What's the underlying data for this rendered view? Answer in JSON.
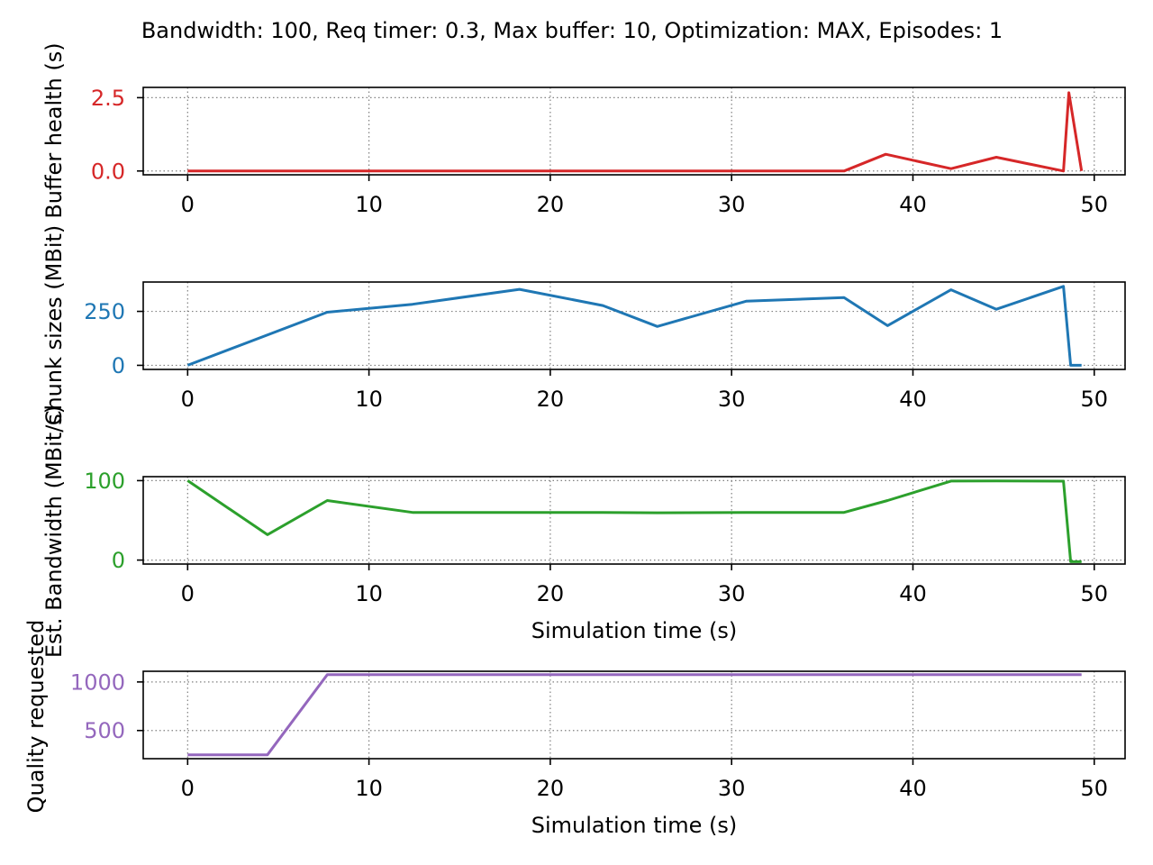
{
  "title": "Bandwidth: 100, Req timer: 0.3, Max buffer: 10, Optimization: MAX, Episodes: 1",
  "chart_data": [
    {
      "type": "line",
      "id": "buffer",
      "ylabel": "Buffer health (s)",
      "xlabel": "",
      "color": "#d62728",
      "xlim": [
        -2.45,
        51.7
      ],
      "ylim": [
        -0.13,
        2.85
      ],
      "xticks": [
        0,
        10,
        20,
        30,
        40,
        50
      ],
      "yticks": [
        0.0,
        2.5
      ],
      "ytick_labels": [
        "0.0",
        "2.5"
      ],
      "grid": true,
      "x": [
        0,
        36.2,
        38.5,
        42.1,
        44.6,
        48.3,
        48.6,
        49.3
      ],
      "y": [
        0,
        0,
        0.57,
        0.08,
        0.47,
        0,
        2.67,
        0
      ]
    },
    {
      "type": "line",
      "id": "chunk",
      "ylabel": "Chunk sizes (MBit)",
      "xlabel": "",
      "color": "#1f77b4",
      "xlim": [
        -2.45,
        51.7
      ],
      "ylim": [
        -19,
        386
      ],
      "xticks": [
        0,
        10,
        20,
        30,
        40,
        50
      ],
      "yticks": [
        0,
        250
      ],
      "ytick_labels": [
        "0",
        "250"
      ],
      "grid": true,
      "x": [
        0,
        7.7,
        12.4,
        18.3,
        22.9,
        25.9,
        30.8,
        36.2,
        38.6,
        42.1,
        44.6,
        48.3,
        48.7,
        49.3
      ],
      "y": [
        0,
        246,
        283,
        352,
        277,
        180,
        297,
        314,
        184,
        350,
        260,
        366,
        0,
        0
      ]
    },
    {
      "type": "line",
      "id": "bandwidth",
      "ylabel": "Est. Bandwidth (MBit/s)",
      "xlabel": "Simulation time (s)",
      "color": "#2ca02c",
      "xlim": [
        -2.45,
        51.7
      ],
      "ylim": [
        -5,
        105
      ],
      "xticks": [
        0,
        10,
        20,
        30,
        40,
        50
      ],
      "yticks": [
        0,
        100
      ],
      "ytick_labels": [
        "0",
        "100"
      ],
      "grid": true,
      "x": [
        0,
        4.4,
        7.7,
        12.4,
        18.3,
        22.9,
        25.9,
        30.8,
        36.2,
        38.6,
        42.1,
        44.6,
        48.3,
        48.7,
        49.3
      ],
      "y": [
        100,
        32,
        75,
        60,
        60,
        60,
        59.5,
        60,
        60,
        75,
        99.5,
        99.6,
        99.3,
        -2,
        -2
      ]
    },
    {
      "type": "line",
      "id": "quality",
      "ylabel": "Quality requested",
      "xlabel": "Simulation time (s)",
      "color": "#9467bd",
      "xlim": [
        -2.45,
        51.7
      ],
      "ylim": [
        210,
        1110
      ],
      "xticks": [
        0,
        10,
        20,
        30,
        40,
        50
      ],
      "yticks": [
        500,
        1000
      ],
      "ytick_labels": [
        "500",
        "1000"
      ],
      "grid": true,
      "x": [
        0,
        4.4,
        7.7,
        49.3
      ],
      "y": [
        250,
        250,
        1075,
        1075
      ]
    }
  ]
}
